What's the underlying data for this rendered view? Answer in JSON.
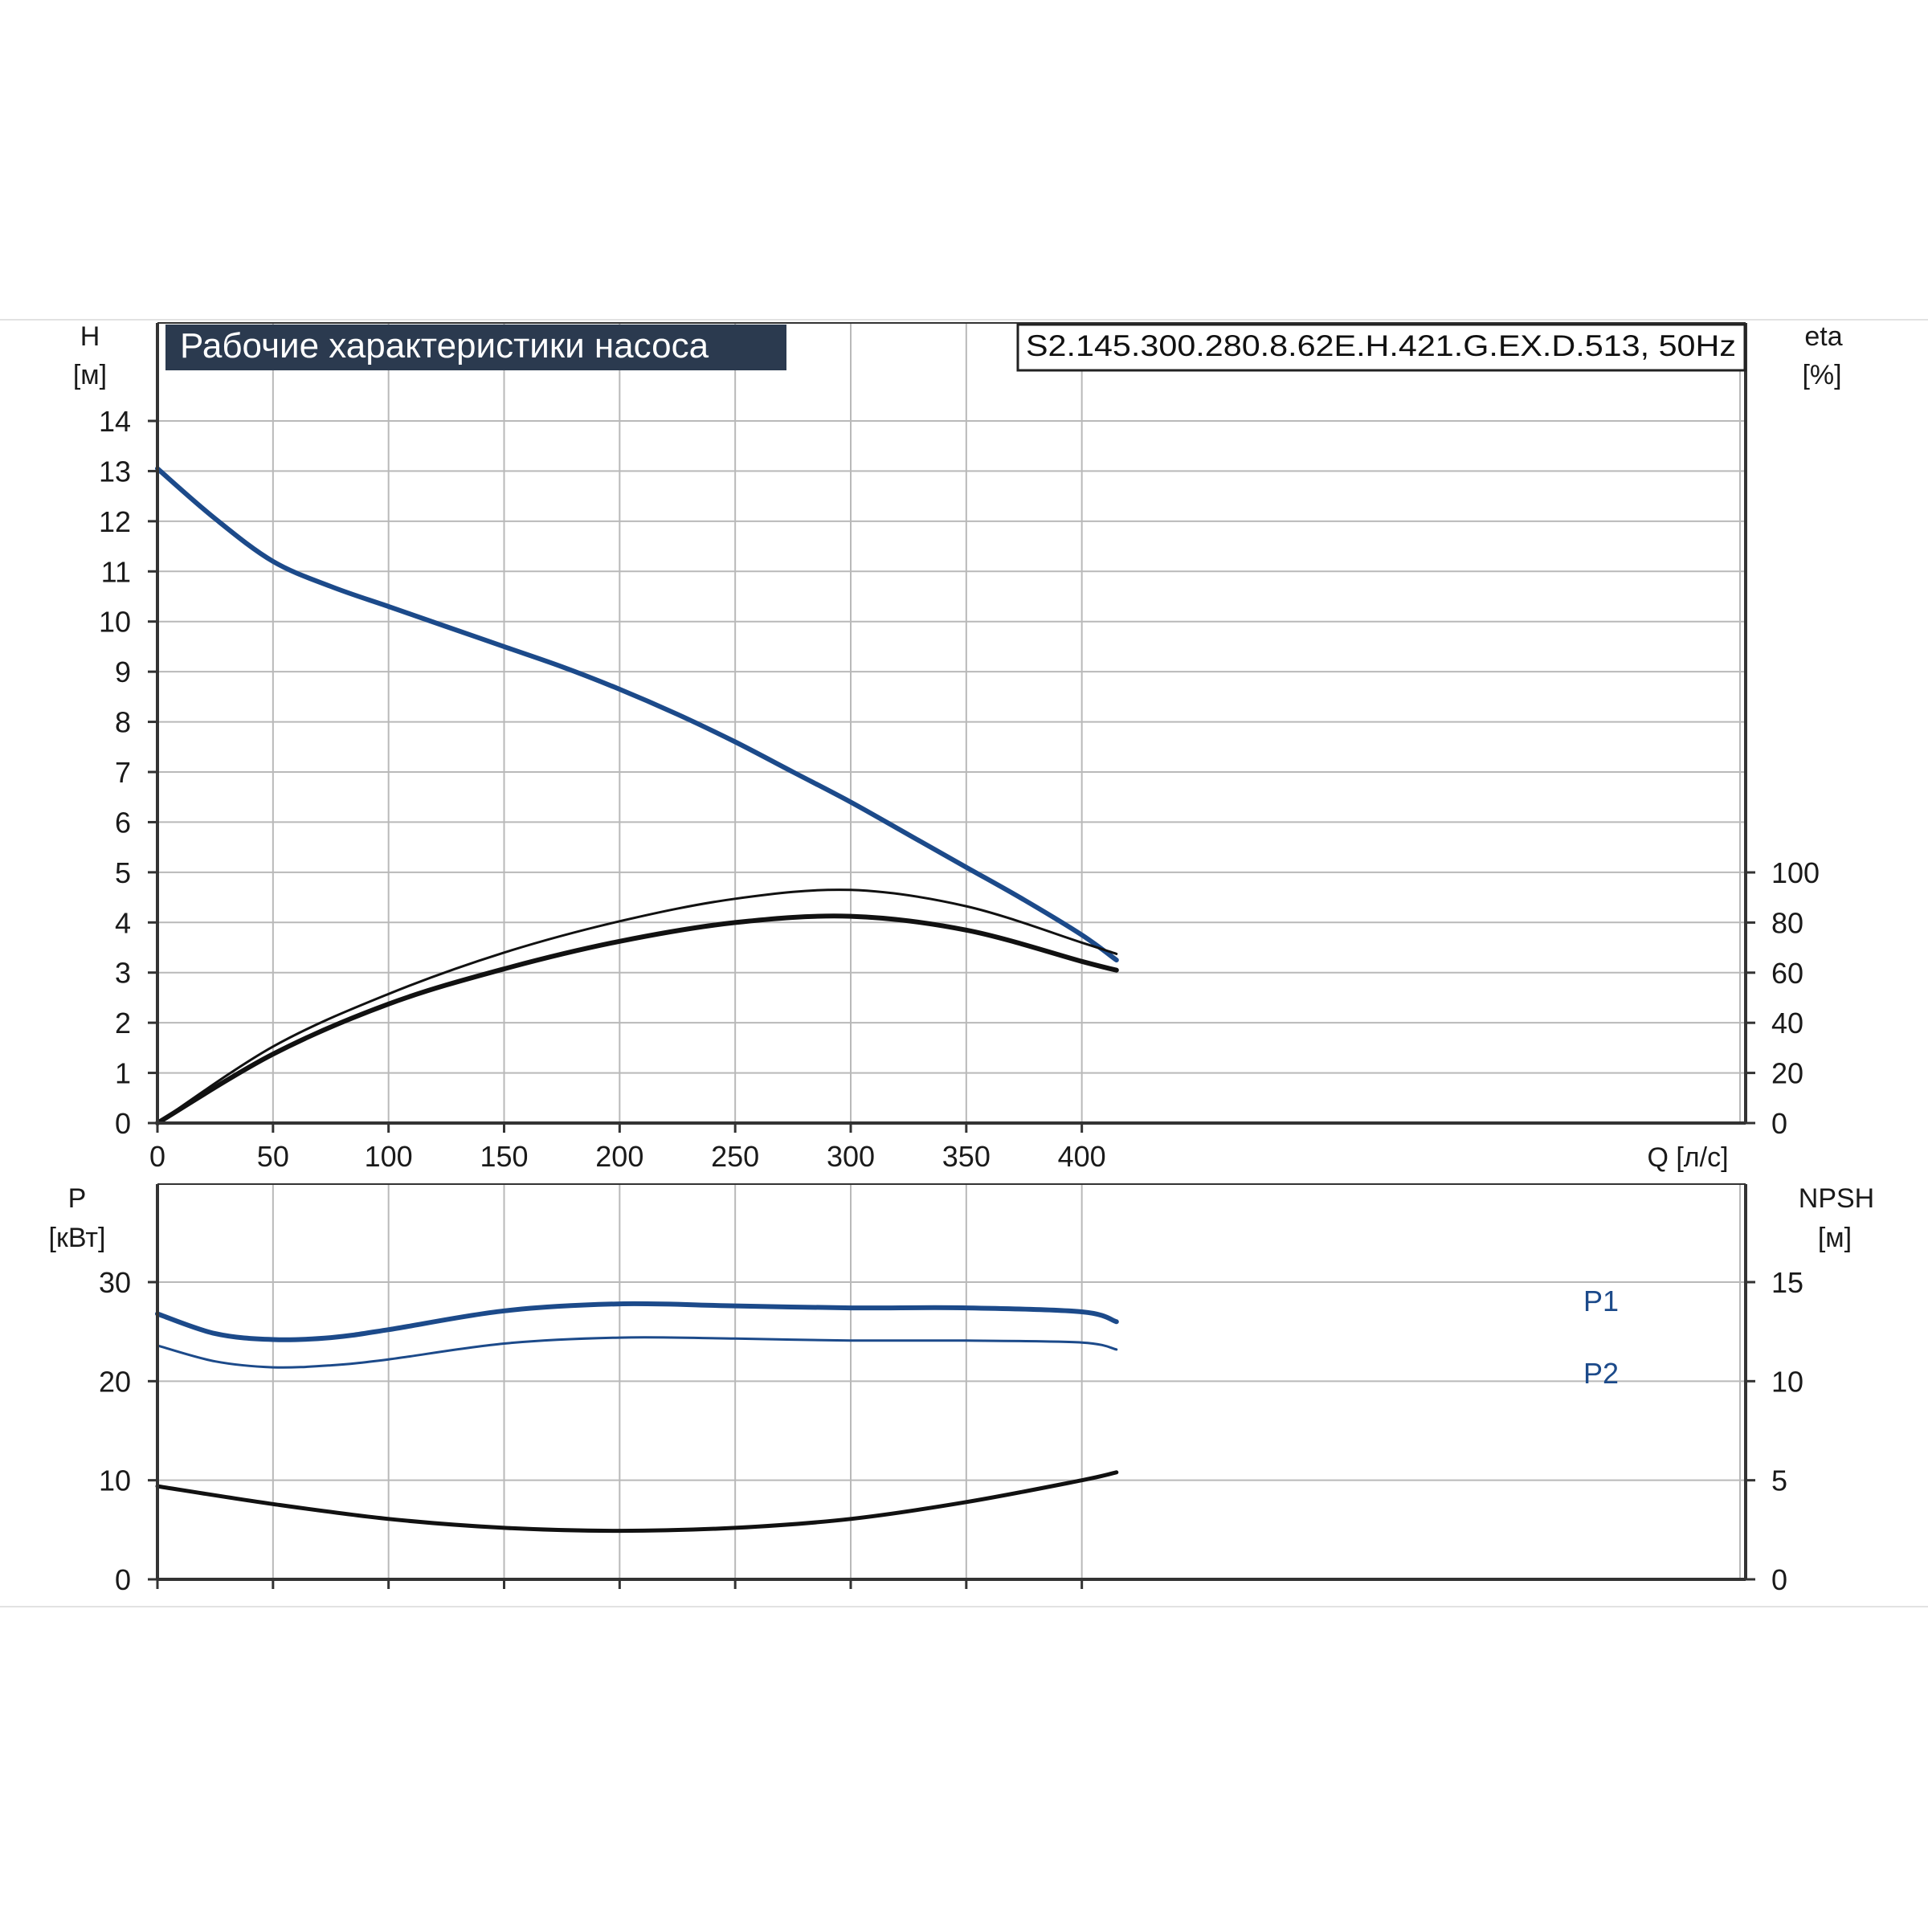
{
  "header": {
    "title": "Рабочие характеристики насоса",
    "model": "S2.145.300.280.8.62E.H.421.G.EX.D.513, 50Hz",
    "title_bg": "#2b3a4f"
  },
  "colors": {
    "blue": "#1c4a8a",
    "black": "#111111",
    "grid": "#b9b9b9",
    "axis": "#333333"
  },
  "chart_data": [
    {
      "type": "line",
      "x_axis": {
        "label": "Q [л/с]",
        "ticks": [
          0,
          50,
          100,
          150,
          200,
          250,
          300,
          350,
          400
        ],
        "xlim": [
          0,
          455
        ]
      },
      "y_left": {
        "label_top": "H",
        "label_unit": "[м]",
        "ticks": [
          0,
          1,
          2,
          3,
          4,
          5,
          6,
          7,
          8,
          9,
          10,
          11,
          12,
          13,
          14
        ],
        "ylim": [
          0,
          14
        ]
      },
      "y_right": {
        "label_top": "eta",
        "label_unit": "[%]",
        "ticks": [
          0,
          20,
          40,
          60,
          80,
          100
        ],
        "ylim": [
          0,
          100
        ]
      },
      "grid": true,
      "series": [
        {
          "axis": "left",
          "color": "blue",
          "width": 6,
          "x": [
            0,
            25,
            50,
            75,
            100,
            125,
            150,
            175,
            200,
            225,
            250,
            275,
            300,
            325,
            350,
            375,
            400,
            415
          ],
          "y": [
            13.05,
            12.05,
            11.2,
            10.7,
            10.3,
            9.9,
            9.5,
            9.1,
            8.65,
            8.15,
            7.6,
            7.0,
            6.4,
            5.75,
            5.1,
            4.45,
            3.75,
            3.25
          ]
        },
        {
          "axis": "right",
          "color": "black",
          "width": 3,
          "x": [
            0,
            50,
            100,
            150,
            200,
            250,
            300,
            350,
            400,
            415
          ],
          "y": [
            0,
            30.5,
            51.5,
            68,
            80.5,
            89.5,
            93,
            86.5,
            72,
            67.5
          ]
        },
        {
          "axis": "right",
          "color": "black",
          "width": 6,
          "x": [
            0,
            50,
            100,
            150,
            200,
            250,
            300,
            350,
            400,
            415
          ],
          "y": [
            0,
            27.5,
            47.5,
            61.5,
            72.5,
            80,
            82.5,
            77,
            64.5,
            61
          ]
        }
      ]
    },
    {
      "type": "line",
      "x_axis": {
        "ticks": [
          0,
          50,
          100,
          150,
          200,
          250,
          300,
          350,
          400
        ],
        "xlim": [
          0,
          455
        ]
      },
      "y_left": {
        "label_top": "P",
        "label_unit": "[кВт]",
        "ticks": [
          0,
          10,
          20,
          30
        ],
        "ylim": [
          0,
          40
        ]
      },
      "y_right": {
        "label_top": "NPSH",
        "label_unit": "[м]",
        "ticks": [
          0,
          5,
          10,
          15
        ],
        "ylim": [
          0,
          20
        ]
      },
      "grid": true,
      "series": [
        {
          "name": "P1",
          "axis": "left",
          "color": "blue",
          "width": 6,
          "x": [
            0,
            25,
            50,
            75,
            100,
            150,
            200,
            250,
            300,
            350,
            400,
            415
          ],
          "y": [
            26.8,
            24.8,
            24.2,
            24.4,
            25.2,
            27.1,
            27.8,
            27.6,
            27.4,
            27.4,
            27.0,
            26.0
          ]
        },
        {
          "name": "P2",
          "axis": "left",
          "color": "blue",
          "width": 3,
          "x": [
            0,
            25,
            50,
            75,
            100,
            150,
            200,
            250,
            300,
            350,
            400,
            415
          ],
          "y": [
            23.6,
            22.0,
            21.4,
            21.6,
            22.2,
            23.8,
            24.4,
            24.3,
            24.1,
            24.1,
            23.9,
            23.2
          ]
        },
        {
          "axis": "right",
          "color": "black",
          "width": 5,
          "x": [
            0,
            50,
            100,
            150,
            200,
            250,
            300,
            350,
            400,
            415
          ],
          "y": [
            4.7,
            3.8,
            3.05,
            2.6,
            2.45,
            2.6,
            3.05,
            3.9,
            5.0,
            5.4
          ]
        }
      ]
    }
  ]
}
